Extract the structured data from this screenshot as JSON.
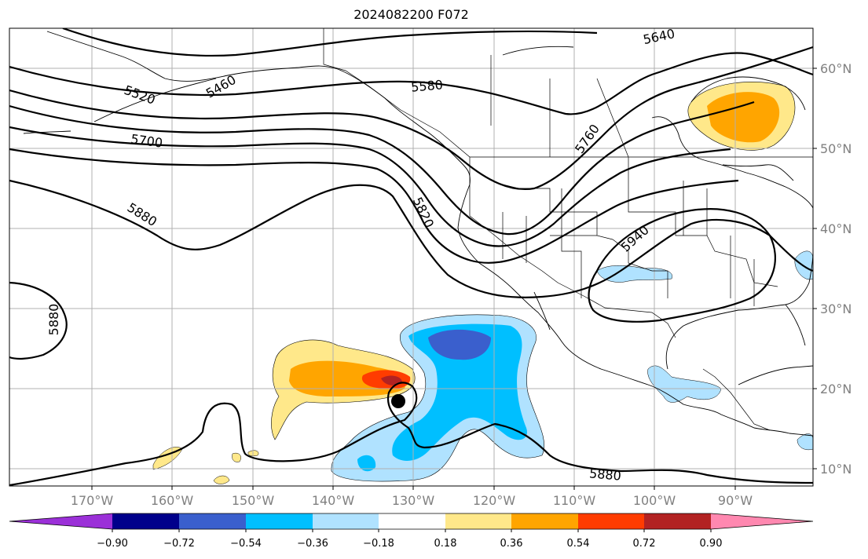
{
  "title": "2024082200 F072",
  "lon_labels": [
    "170°W",
    "160°W",
    "150°W",
    "140°W",
    "130°W",
    "120°W",
    "110°W",
    "100°W",
    "90°W"
  ],
  "lat_labels": [
    "60°N",
    "50°N",
    "40°N",
    "30°N",
    "20°N",
    "10°N"
  ],
  "contour_labels": {
    "c5640": "5640",
    "c5580": "5580",
    "c5520": "5520",
    "c5460": "5460",
    "c5700": "5700",
    "c5760": "5760",
    "c5820": "5820",
    "c5880a": "5880",
    "c5880b": "5880",
    "c5880c": "5880",
    "c5940": "5940"
  },
  "colorbar": {
    "ticks": [
      "−0.90",
      "−0.72",
      "−0.54",
      "−0.36",
      "−0.18",
      "0.18",
      "0.36",
      "0.54",
      "0.72",
      "0.90"
    ],
    "colors": [
      "#9b30d8",
      "#00008b",
      "#3a5fcd",
      "#00bfff",
      "#b0e2ff",
      "#ffffff",
      "#ffe88a",
      "#ffa500",
      "#ff3c00",
      "#b22222",
      "#ff88b0"
    ]
  },
  "marker": "storm-center"
}
